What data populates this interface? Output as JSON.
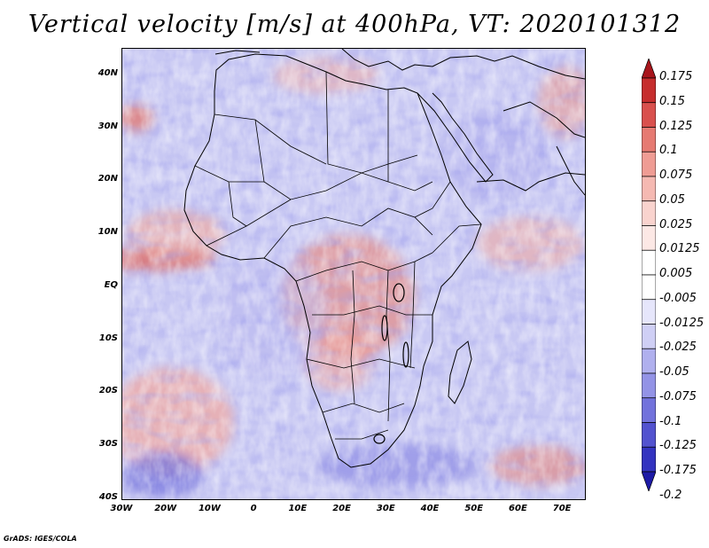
{
  "title": "Vertical velocity [m/s] at 400hPa, VT: 2020101312",
  "credit": "GrADS: IGES/COLA",
  "lat_labels": [
    "40N",
    "30N",
    "20N",
    "10N",
    "EQ",
    "10S",
    "20S",
    "30S",
    "40S"
  ],
  "lat_values": [
    40,
    30,
    20,
    10,
    0,
    -10,
    -20,
    -30,
    -40
  ],
  "lon_labels": [
    "30W",
    "20W",
    "10W",
    "0",
    "10E",
    "20E",
    "30E",
    "40E",
    "50E",
    "60E",
    "70E"
  ],
  "lon_values": [
    -30,
    -20,
    -10,
    0,
    10,
    20,
    30,
    40,
    50,
    60,
    70
  ],
  "extent": {
    "lon_min": -30,
    "lon_max": 75,
    "lat_min": -40,
    "lat_max": 45
  },
  "colorbar": {
    "labels": [
      "0.175",
      "0.15",
      "0.125",
      "0.1",
      "0.075",
      "0.05",
      "0.025",
      "0.0125",
      "0.005",
      "-0.005",
      "-0.0125",
      "-0.025",
      "-0.05",
      "-0.075",
      "-0.1",
      "-0.125",
      "-0.175",
      "-0.2"
    ],
    "colors": [
      "#a8151c",
      "#c62d2d",
      "#d9504d",
      "#e67a72",
      "#ef9c94",
      "#f5b9b2",
      "#f9d3ce",
      "#fce8e5",
      "#ffffff",
      "#ffffff",
      "#e6e6fb",
      "#cfcff5",
      "#b0b0ee",
      "#9393e6",
      "#7272dc",
      "#5252cf",
      "#3333c0",
      "#1d1aa6"
    ]
  }
}
